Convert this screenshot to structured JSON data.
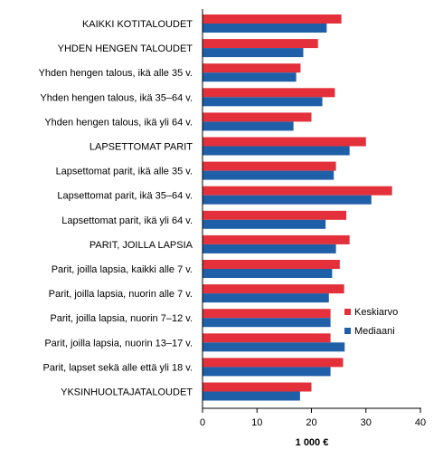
{
  "chart_data": {
    "type": "bar",
    "orientation": "horizontal",
    "categories": [
      "KAIKKI KOTITALOUDET",
      "YHDEN HENGEN TALOUDET",
      "Yhden hengen talous, ikä alle 35 v.",
      "Yhden hengen talous, ikä 35–64 v.",
      "Yhden hengen talous, ikä yli 64 v.",
      "LAPSETTOMAT PARIT",
      "Lapsettomat parit, ikä alle 35 v.",
      "Lapsettomat parit, ikä 35–64 v.",
      "Lapsettomat parit, ikä yli 64 v.",
      "PARIT, JOILLA LAPSIA",
      "Parit, joilla lapsia, kaikki alle 7 v.",
      "Parit, joilla lapsia, nuorin alle 7 v.",
      "Parit, joilla lapsia, nuorin 7–12 v.",
      "Parit, joilla lapsia, nuorin 13–17 v.",
      "Parit, lapset sekä alle että yli 18 v.",
      "YKSINHUOLTAJATALOUDET"
    ],
    "series": [
      {
        "name": "Keskiarvo",
        "color": "#e3303a",
        "values": [
          25.5,
          21.2,
          18.0,
          24.3,
          20.0,
          30.0,
          24.5,
          34.8,
          26.4,
          27.0,
          25.2,
          26.0,
          23.5,
          23.5,
          25.8,
          20.0
        ]
      },
      {
        "name": "Mediaani",
        "color": "#1f5fa8",
        "values": [
          22.8,
          18.5,
          17.2,
          22.0,
          16.7,
          27.0,
          24.1,
          31.0,
          22.6,
          24.5,
          23.8,
          23.2,
          23.5,
          26.1,
          23.5,
          17.9
        ]
      }
    ],
    "xlabel": "1 000 €",
    "xlim": [
      0,
      40
    ],
    "xticks": [
      "0",
      "10",
      "20",
      "30",
      "40"
    ],
    "legend_position": "right"
  }
}
